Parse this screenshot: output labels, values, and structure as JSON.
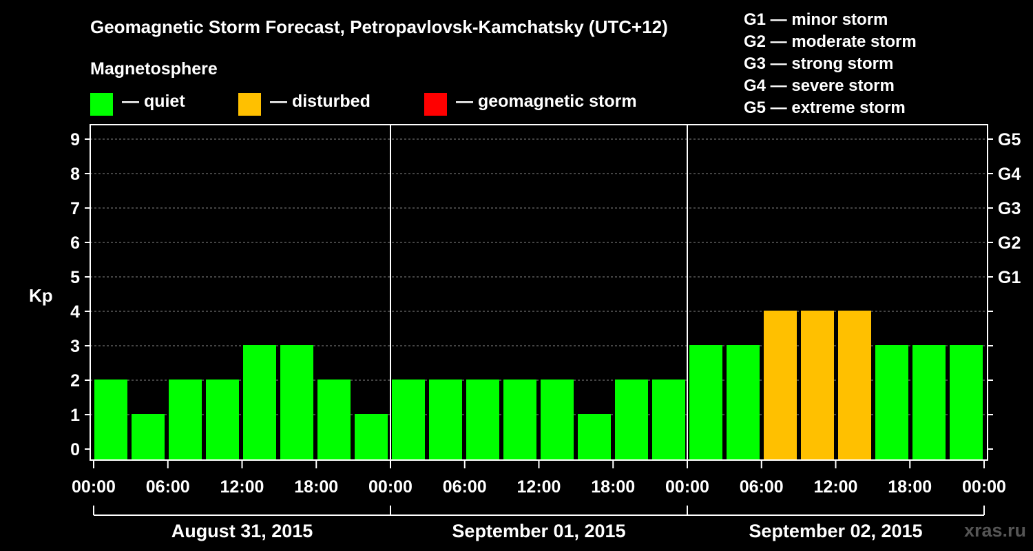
{
  "header": {
    "title": "Geomagnetic Storm Forecast, Petropavlovsk-Kamchatsky (UTC+12)",
    "magnetosphere_label": "Magnetosphere"
  },
  "legend": {
    "items": [
      {
        "label": "— quiet",
        "color": "#00ff00"
      },
      {
        "label": "— disturbed",
        "color": "#ffc000"
      },
      {
        "label": "— geomagnetic storm",
        "color": "#ff0000"
      }
    ]
  },
  "storm_scale": [
    "G1 — minor storm",
    "G2 — moderate storm",
    "G3 — strong storm",
    "G4 — severe storm",
    "G5 — extreme storm"
  ],
  "watermark": "xras.ru",
  "chart_data": {
    "type": "bar",
    "title": "Geomagnetic Storm Forecast, Petropavlovsk-Kamchatsky (UTC+12)",
    "ylabel": "Kp",
    "ylim": [
      0,
      9
    ],
    "yticks": [
      "0",
      "1",
      "2",
      "3",
      "4",
      "5",
      "6",
      "7",
      "8",
      "9"
    ],
    "right_ticks": [
      {
        "kp": 5,
        "label": "G1"
      },
      {
        "kp": 6,
        "label": "G2"
      },
      {
        "kp": 7,
        "label": "G3"
      },
      {
        "kp": 8,
        "label": "G4"
      },
      {
        "kp": 9,
        "label": "G5"
      }
    ],
    "xtick_labels": [
      "00:00",
      "06:00",
      "12:00",
      "18:00",
      "00:00",
      "06:00",
      "12:00",
      "18:00",
      "00:00",
      "06:00",
      "12:00",
      "18:00",
      "00:00"
    ],
    "days": [
      "August 31, 2015",
      "September 01, 2015",
      "September 02, 2015"
    ],
    "interval_hours": 3,
    "values": [
      2,
      1,
      2,
      2,
      3,
      3,
      2,
      1,
      2,
      2,
      2,
      2,
      2,
      1,
      2,
      2,
      3,
      3,
      4,
      4,
      4,
      3,
      3,
      3
    ],
    "thresholds": {
      "disturbed": 4,
      "storm": 5
    },
    "colors": {
      "quiet": "#00ff00",
      "disturbed": "#ffc000",
      "storm": "#ff0000",
      "grid": "#888888",
      "axis": "#ffffff"
    }
  }
}
